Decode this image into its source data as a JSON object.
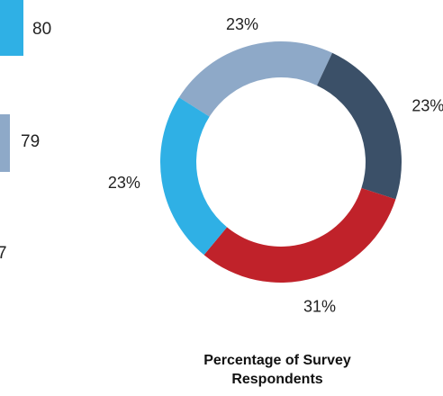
{
  "chart_data": [
    {
      "type": "bar",
      "values": [
        "80",
        "79",
        "7"
      ],
      "colors": [
        "#2fb0e5",
        "#8ea9c8",
        "#2f4a6b"
      ]
    },
    {
      "type": "pie",
      "title": "Percentage of Survey Respondents",
      "labels": [
        "23%",
        "23%",
        "31%",
        "23%"
      ],
      "values": [
        23,
        23,
        31,
        23
      ],
      "colors": [
        "#8ea9c8",
        "#3b5068",
        "#c0222a",
        "#2fb0e5"
      ]
    }
  ]
}
